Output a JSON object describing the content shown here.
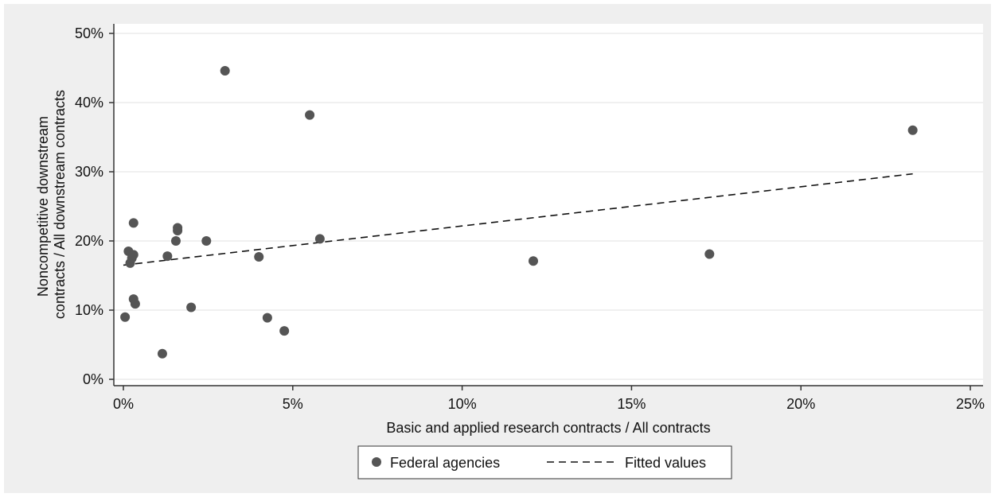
{
  "chart_data": {
    "type": "scatter",
    "title": "",
    "xlabel": "Basic and applied research contracts / All contracts",
    "ylabel_lines": [
      "Noncompetitive downstream",
      "contracts / All downstream contracts"
    ],
    "xlim": [
      0,
      25
    ],
    "ylim": [
      0,
      50
    ],
    "x_ticks": [
      0,
      5,
      10,
      15,
      20,
      25
    ],
    "x_tick_labels": [
      "0%",
      "5%",
      "10%",
      "15%",
      "20%",
      "25%"
    ],
    "y_ticks": [
      0,
      10,
      20,
      30,
      40,
      50
    ],
    "y_tick_labels": [
      "0%",
      "10%",
      "20%",
      "30%",
      "40%",
      "50%"
    ],
    "grid": "horizontal",
    "legend_position": "bottom",
    "series": [
      {
        "name": "Federal agencies",
        "kind": "scatter",
        "color": "#555555",
        "points": [
          [
            0.05,
            9.0
          ],
          [
            0.15,
            18.5
          ],
          [
            0.2,
            16.8
          ],
          [
            0.25,
            17.5
          ],
          [
            0.3,
            18.0
          ],
          [
            0.3,
            11.6
          ],
          [
            0.35,
            10.9
          ],
          [
            0.3,
            22.6
          ],
          [
            1.15,
            3.7
          ],
          [
            1.3,
            17.8
          ],
          [
            1.55,
            20.0
          ],
          [
            1.6,
            21.5
          ],
          [
            1.6,
            21.9
          ],
          [
            2.0,
            10.4
          ],
          [
            2.45,
            20.0
          ],
          [
            3.0,
            44.6
          ],
          [
            4.0,
            17.7
          ],
          [
            4.25,
            8.9
          ],
          [
            4.75,
            7.0
          ],
          [
            5.5,
            38.2
          ],
          [
            5.8,
            20.3
          ],
          [
            12.1,
            17.1
          ],
          [
            17.3,
            18.1
          ],
          [
            23.3,
            36.0
          ]
        ]
      },
      {
        "name": "Fitted values",
        "kind": "line",
        "style": "dashed",
        "color": "#111111",
        "x": [
          0,
          23.3
        ],
        "y": [
          16.5,
          29.7
        ]
      }
    ]
  }
}
